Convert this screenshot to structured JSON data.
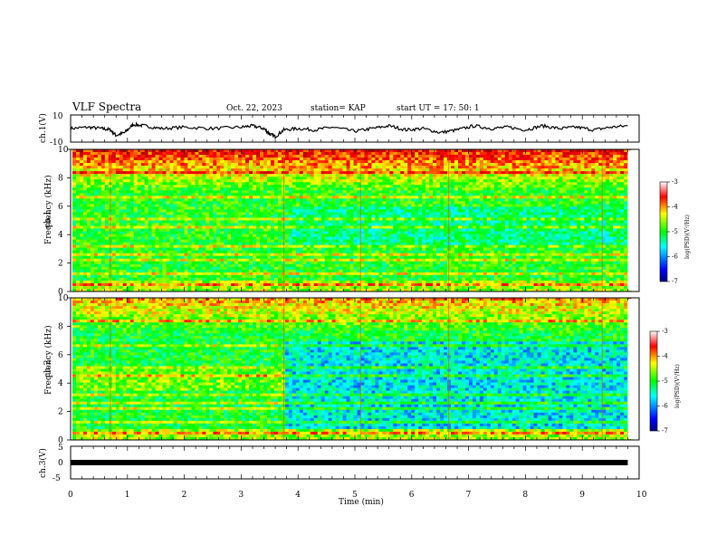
{
  "header": {
    "title": "VLF Spectra",
    "date": "Oct. 22, 2023",
    "station": "station= KAP",
    "start": "start  UT  =   17: 50: 1"
  },
  "panels": {
    "ch1_wave": {
      "ylabel": "ch.1(V)"
    },
    "ch1_spec": {
      "ylabel_line1": "ch.1",
      "ylabel_line2": "Frequency (kHz)"
    },
    "ch2_spec": {
      "ylabel_line1": "ch.2",
      "ylabel_line2": "Frequency (kHz)"
    },
    "ch3_wave": {
      "ylabel": "ch.3(V)"
    }
  },
  "colorbar": {
    "label": "log(PSD)(V²/Hz)",
    "ticks": [
      "-3",
      "-4",
      "-5",
      "-6",
      "-7"
    ]
  },
  "xaxis": {
    "label": "Time (min)",
    "ticks": [
      "0",
      "1",
      "2",
      "3",
      "4",
      "5",
      "6",
      "7",
      "8",
      "9",
      "10"
    ]
  },
  "chart_data": [
    {
      "type": "line",
      "title": "",
      "ylabel": "ch.1(V)",
      "xlim": [
        0,
        10
      ],
      "ylim": [
        -10,
        10
      ],
      "yticks": [
        "10",
        "-10"
      ],
      "series": [
        {
          "color": "#000000",
          "x": [
            0,
            0.3,
            0.55,
            0.7,
            0.8,
            0.95,
            1.1,
            1.3,
            1.6,
            2.0,
            2.5,
            3.0,
            3.2,
            3.4,
            3.5,
            3.6,
            3.75,
            4.0,
            4.3,
            4.6,
            5.0,
            5.3,
            5.6,
            5.9,
            6.2,
            6.5,
            6.8,
            7.1,
            7.4,
            7.7,
            8.0,
            8.3,
            8.6,
            8.9,
            9.2,
            9.5,
            9.8
          ],
          "y": [
            0,
            1,
            0,
            -1,
            -5,
            -3,
            3,
            2,
            0,
            1,
            0,
            1,
            2,
            0,
            -4,
            -6,
            -1,
            0,
            -1,
            1,
            -2,
            0,
            2,
            -1,
            0,
            -3,
            -1,
            2,
            0,
            1,
            -1,
            2,
            0,
            1,
            -1,
            1,
            2
          ]
        }
      ]
    },
    {
      "type": "heatmap",
      "title": "",
      "ylabel": "Frequency (kHz)",
      "xlim": [
        0,
        10
      ],
      "ylim": [
        0,
        10
      ],
      "yticks": [
        "0",
        "2",
        "4",
        "6",
        "8",
        "10"
      ],
      "colorscale": [
        "#000080",
        "#0000ff",
        "#00ffff",
        "#00ff00",
        "#ffff00",
        "#ff0000",
        "#800000"
      ],
      "clim": [
        -7,
        -3
      ]
    },
    {
      "type": "heatmap",
      "title": "",
      "ylabel": "Frequency (kHz)",
      "xlim": [
        0,
        10
      ],
      "ylim": [
        0,
        10
      ],
      "yticks": [
        "0",
        "2",
        "4",
        "6",
        "8",
        "10"
      ],
      "colorscale": [
        "#000080",
        "#0000ff",
        "#00ffff",
        "#00ff00",
        "#ffff00",
        "#ff0000",
        "#800000"
      ],
      "clim": [
        -7,
        -3
      ]
    },
    {
      "type": "line",
      "title": "",
      "ylabel": "ch.3(V)",
      "xlim": [
        0,
        10
      ],
      "ylim": [
        -5,
        5
      ],
      "yticks": [
        "5",
        "0",
        "-5"
      ],
      "series": [
        {
          "color": "#000000",
          "x": [
            0,
            9.8
          ],
          "y": [
            0,
            0
          ]
        }
      ]
    }
  ]
}
